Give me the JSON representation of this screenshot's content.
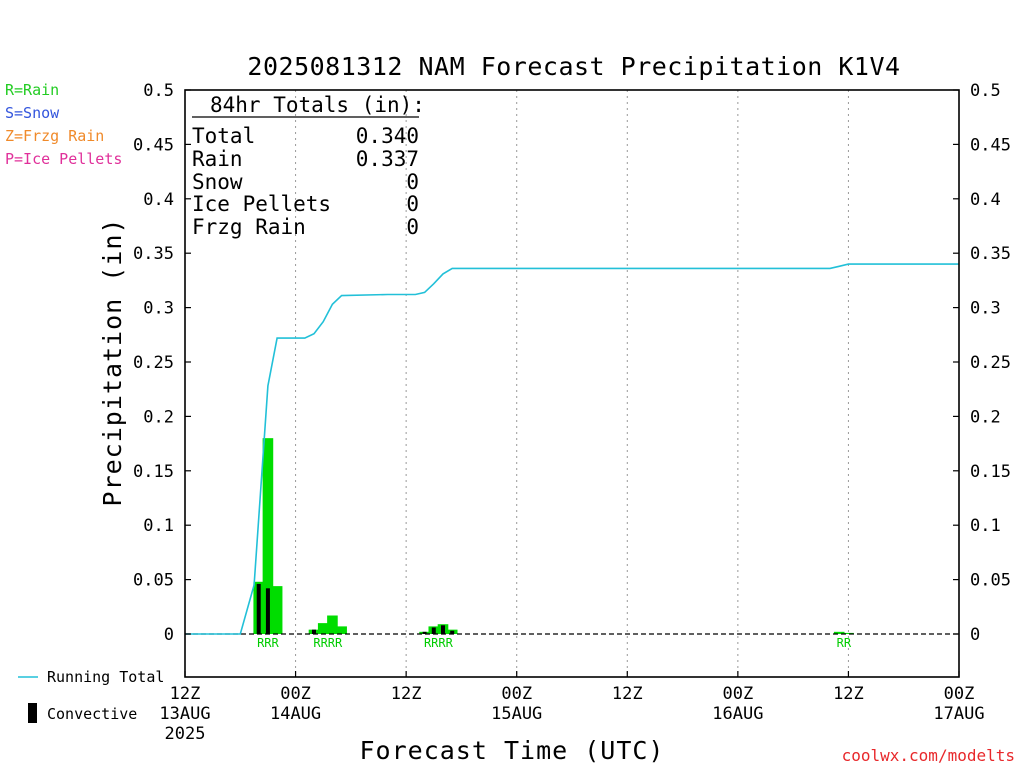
{
  "chart_data": {
    "type": "bar",
    "title": "2025081312 NAM Forecast Precipitation K1V4",
    "xlabel": "Forecast Time (UTC)",
    "ylabel": "Precipitation (in)",
    "ylim": [
      0,
      0.5
    ],
    "xlim_hours": [
      0,
      84
    ],
    "y_ticks": [
      "0",
      "0.05",
      "0.1",
      "0.15",
      "0.2",
      "0.25",
      "0.3",
      "0.35",
      "0.4",
      "0.45",
      "0.5"
    ],
    "x_ticks": [
      {
        "hour": 0,
        "line1": "12Z",
        "line2": "13AUG",
        "line3": "2025"
      },
      {
        "hour": 12,
        "line1": "00Z",
        "line2": "14AUG",
        "line3": ""
      },
      {
        "hour": 24,
        "line1": "12Z",
        "line2": "",
        "line3": ""
      },
      {
        "hour": 36,
        "line1": "00Z",
        "line2": "15AUG",
        "line3": ""
      },
      {
        "hour": 48,
        "line1": "12Z",
        "line2": "",
        "line3": ""
      },
      {
        "hour": 60,
        "line1": "00Z",
        "line2": "16AUG",
        "line3": ""
      },
      {
        "hour": 72,
        "line1": "12Z",
        "line2": "",
        "line3": ""
      },
      {
        "hour": 84,
        "line1": "00Z",
        "line2": "17AUG",
        "line3": ""
      }
    ],
    "grid": "dotted vertical lines at 12-hour intervals",
    "type_legend": [
      {
        "label": "R=Rain",
        "color": "#22cc22"
      },
      {
        "label": "S=Snow",
        "color": "#3355dd"
      },
      {
        "label": "Z=Frzg Rain",
        "color": "#f08a2a"
      },
      {
        "label": "P=Ice Pellets",
        "color": "#e0309a"
      }
    ],
    "series_legend": {
      "running_total": "Running Total",
      "convective": "Convective"
    },
    "colors": {
      "rain": "#00dd00",
      "convective": "#000000",
      "running_total": "#22c0d8"
    },
    "totals": {
      "heading": "84hr Totals (in):",
      "rows": [
        {
          "label": "Total",
          "value": "0.340"
        },
        {
          "label": "Rain",
          "value": "0.337"
        },
        {
          "label": "Snow",
          "value": "0"
        },
        {
          "label": "Ice Pellets",
          "value": "0"
        },
        {
          "label": "Frzg Rain",
          "value": "0"
        }
      ]
    },
    "bars": [
      {
        "hour": 8,
        "rain": 0.048,
        "convective": 0.046
      },
      {
        "hour": 9,
        "rain": 0.18,
        "convective": 0.042
      },
      {
        "hour": 10,
        "rain": 0.044,
        "convective": 0.0
      },
      {
        "hour": 14,
        "rain": 0.004,
        "convective": 0.004
      },
      {
        "hour": 15,
        "rain": 0.01,
        "convective": 0.0
      },
      {
        "hour": 16,
        "rain": 0.017,
        "convective": 0.0
      },
      {
        "hour": 17,
        "rain": 0.007,
        "convective": 0.0
      },
      {
        "hour": 26,
        "rain": 0.002,
        "convective": 0.002
      },
      {
        "hour": 27,
        "rain": 0.007,
        "convective": 0.006
      },
      {
        "hour": 28,
        "rain": 0.009,
        "convective": 0.008
      },
      {
        "hour": 29,
        "rain": 0.004,
        "convective": 0.003
      },
      {
        "hour": 71,
        "rain": 0.002,
        "convective": 0.0
      },
      {
        "hour": 72,
        "rain": 0.001,
        "convective": 0.0
      }
    ],
    "precip_type_labels": [
      {
        "hour": 9,
        "text": "RRR"
      },
      {
        "hour": 15.5,
        "text": "RRRR"
      },
      {
        "hour": 27.5,
        "text": "RRRR"
      },
      {
        "hour": 71.5,
        "text": "RR"
      }
    ],
    "running_total": [
      [
        0,
        0
      ],
      [
        6,
        0
      ],
      [
        7.5,
        0.045
      ],
      [
        9,
        0.228
      ],
      [
        10,
        0.272
      ],
      [
        13,
        0.272
      ],
      [
        14,
        0.276
      ],
      [
        15,
        0.287
      ],
      [
        16,
        0.303
      ],
      [
        17,
        0.311
      ],
      [
        22,
        0.312
      ],
      [
        24,
        0.312
      ],
      [
        25,
        0.312
      ],
      [
        26,
        0.314
      ],
      [
        27,
        0.322
      ],
      [
        28,
        0.331
      ],
      [
        29,
        0.336
      ],
      [
        35,
        0.336
      ],
      [
        60,
        0.336
      ],
      [
        70,
        0.336
      ],
      [
        71,
        0.338
      ],
      [
        72,
        0.34
      ],
      [
        84,
        0.34
      ]
    ]
  },
  "credit": "coolwx.com/modelts"
}
